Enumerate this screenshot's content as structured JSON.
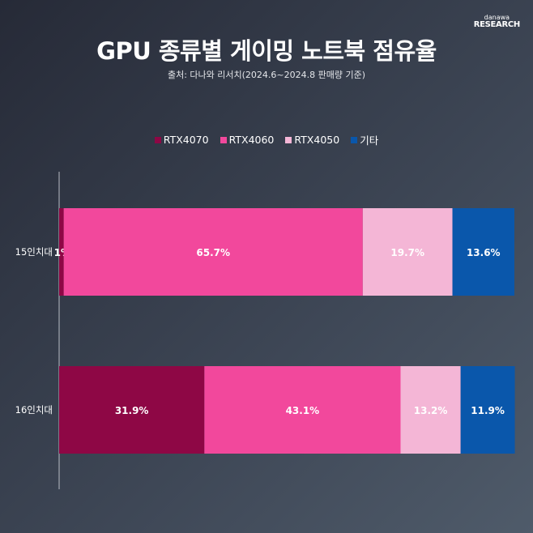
{
  "logo": {
    "small": "danawa",
    "big": "RESEARCH"
  },
  "title": "GPU 종류별 게이밍 노트북 점유율",
  "subtitle": "출처: 다나와 리서치(2024.6~2024.8 판매량 기준)",
  "chart_data": {
    "type": "bar",
    "orientation": "horizontal-stacked-100",
    "title": "GPU 종류별 게이밍 노트북 점유율",
    "categories": [
      "15인치대",
      "16인치대"
    ],
    "series": [
      {
        "name": "RTX4070",
        "color": "#8e0745",
        "values": [
          1,
          31.9
        ],
        "labels": [
          "1%",
          "31.9%"
        ]
      },
      {
        "name": "RTX4060",
        "color": "#f2489c",
        "values": [
          65.7,
          43.1
        ],
        "labels": [
          "65.7%",
          "43.1%"
        ]
      },
      {
        "name": "RTX4050",
        "color": "#f4b6d6",
        "values": [
          19.7,
          13.2
        ],
        "labels": [
          "19.7%",
          "13.2%"
        ]
      },
      {
        "name": "기타",
        "color": "#0a57ab",
        "values": [
          13.6,
          11.9
        ],
        "labels": [
          "13.6%",
          "11.9%"
        ]
      }
    ],
    "xlim": [
      0,
      100
    ],
    "legend": "top-center",
    "grid": false
  }
}
